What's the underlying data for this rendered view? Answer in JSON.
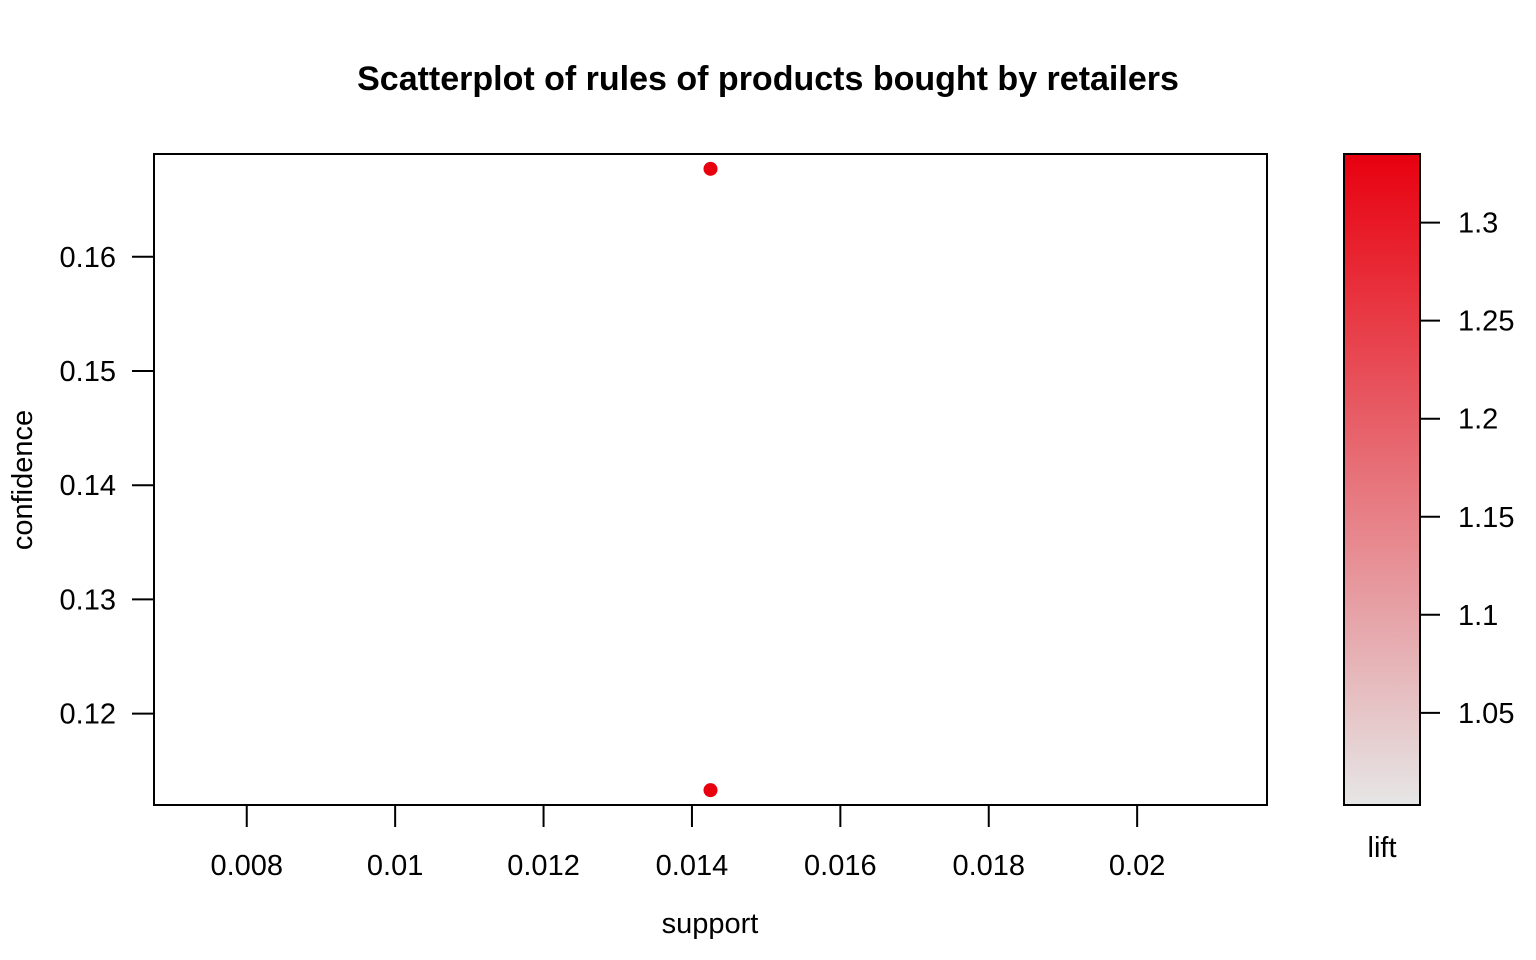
{
  "chart_data": {
    "type": "scatter",
    "title": "Scatterplot of rules of products bought by retailers",
    "xlabel": "support",
    "ylabel": "confidence",
    "xlim": [
      0.00675,
      0.02175
    ],
    "ylim": [
      0.112,
      0.169
    ],
    "x_ticks": [
      0.008,
      0.01,
      0.012,
      0.014,
      0.016,
      0.018,
      0.02
    ],
    "x_tick_labels": [
      "0.008",
      "0.01",
      "0.012",
      "0.014",
      "0.016",
      "0.018",
      "0.02"
    ],
    "y_ticks": [
      0.12,
      0.13,
      0.14,
      0.15,
      0.16
    ],
    "y_tick_labels": [
      "0.12",
      "0.13",
      "0.14",
      "0.15",
      "0.16"
    ],
    "points": [
      {
        "x": 0.01425,
        "y": 0.1677,
        "lift": 1.335
      },
      {
        "x": 0.01425,
        "y": 0.1133,
        "lift": 1.335
      }
    ],
    "color_scale": {
      "label": "lift",
      "range": [
        1.003,
        1.335
      ],
      "ticks": [
        1.05,
        1.1,
        1.15,
        1.2,
        1.25,
        1.3
      ],
      "tick_labels": [
        "1.05",
        "1.1",
        "1.15",
        "1.2",
        "1.25",
        "1.3"
      ],
      "low_color": "#e6e6e6",
      "high_color": "#e8000f"
    },
    "grid": false,
    "legend": "colorbar-right"
  }
}
